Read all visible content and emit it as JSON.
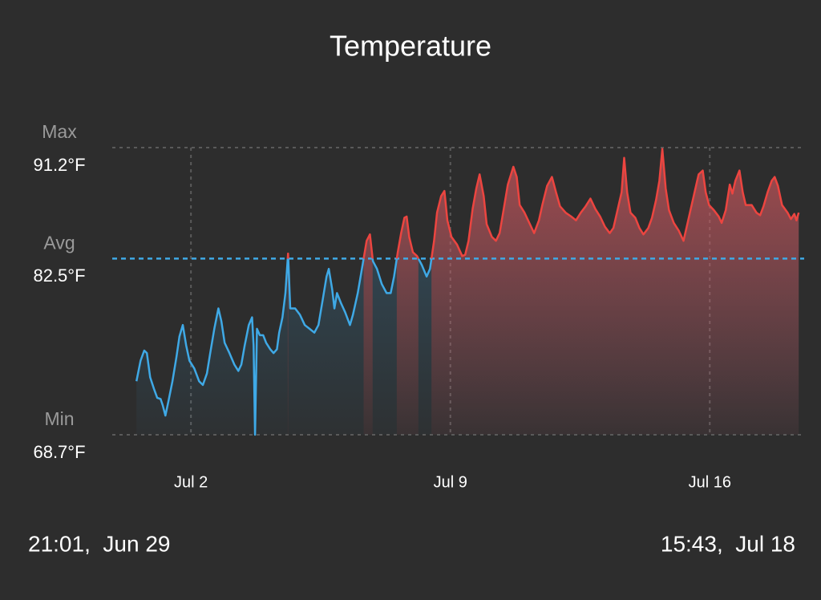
{
  "chart_data": {
    "type": "line",
    "title": "Temperature",
    "x": [
      0.53,
      0.64,
      0.74,
      0.81,
      0.9,
      1.0,
      1.09,
      1.18,
      1.24,
      1.31,
      1.39,
      1.5,
      1.61,
      1.69,
      1.78,
      1.87,
      1.96,
      2.09,
      2.22,
      2.32,
      2.43,
      2.52,
      2.63,
      2.74,
      2.82,
      2.91,
      3.04,
      3.17,
      3.28,
      3.36,
      3.45,
      3.56,
      3.65,
      3.69,
      3.73,
      3.78,
      3.86,
      3.95,
      4.03,
      4.14,
      4.23,
      4.32,
      4.38,
      4.47,
      4.55,
      4.62,
      4.68,
      4.81,
      4.94,
      5.07,
      5.2,
      5.33,
      5.44,
      5.55,
      5.66,
      5.72,
      5.81,
      5.87,
      5.94,
      6.05,
      6.16,
      6.29,
      6.37,
      6.5,
      6.63,
      6.74,
      6.83,
      6.91,
      7.02,
      7.15,
      7.28,
      7.39,
      7.48,
      7.58,
      7.67,
      7.76,
      7.82,
      7.89,
      7.99,
      8.1,
      8.23,
      8.36,
      8.45,
      8.56,
      8.64,
      8.75,
      8.84,
      8.92,
      9.03,
      9.18,
      9.32,
      9.4,
      9.49,
      9.6,
      9.7,
      9.79,
      9.9,
      9.98,
      10.12,
      10.23,
      10.33,
      10.44,
      10.55,
      10.7,
      10.79,
      10.87,
      11.0,
      11.13,
      11.26,
      11.39,
      11.48,
      11.61,
      11.74,
      11.85,
      11.96,
      12.11,
      12.26,
      12.39,
      12.52,
      12.65,
      12.78,
      12.91,
      13.04,
      13.17,
      13.3,
      13.4,
      13.51,
      13.62,
      13.69,
      13.77,
      13.86,
      13.99,
      14.1,
      14.21,
      14.34,
      14.44,
      14.55,
      14.64,
      14.72,
      14.81,
      14.9,
      15.03,
      15.16,
      15.29,
      15.37,
      15.48,
      15.59,
      15.7,
      15.81,
      15.89,
      15.98,
      16.11,
      16.24,
      16.32,
      16.43,
      16.54,
      16.61,
      16.69,
      16.8,
      16.89,
      16.97,
      17.13,
      17.26,
      17.36,
      17.45,
      17.56,
      17.67,
      17.75,
      17.84,
      17.95,
      18.1,
      18.19,
      18.28,
      18.34,
      18.4
    ],
    "values": [
      72.9,
      74.5,
      75.3,
      75.1,
      73.2,
      72.3,
      71.6,
      71.5,
      71.0,
      70.2,
      71.3,
      72.9,
      74.8,
      76.4,
      77.3,
      75.7,
      74.5,
      73.9,
      72.9,
      72.6,
      73.5,
      75.1,
      77.0,
      78.6,
      77.6,
      75.9,
      75.1,
      74.2,
      73.7,
      74.2,
      75.7,
      77.3,
      77.9,
      75.7,
      68.7,
      77.0,
      76.5,
      76.5,
      75.9,
      75.4,
      75.1,
      75.4,
      76.7,
      77.9,
      79.8,
      82.9,
      78.6,
      78.6,
      78.1,
      77.3,
      77.0,
      76.7,
      77.3,
      79.2,
      81.1,
      81.7,
      80.1,
      78.6,
      79.8,
      79.0,
      78.3,
      77.3,
      78.1,
      79.8,
      82.0,
      83.9,
      84.4,
      82.3,
      81.7,
      80.5,
      79.8,
      79.8,
      81.1,
      83.0,
      84.5,
      85.7,
      85.8,
      84.2,
      83.0,
      82.7,
      82.0,
      81.1,
      81.7,
      83.9,
      86.1,
      87.4,
      87.8,
      85.5,
      84.2,
      83.6,
      82.7,
      82.8,
      83.9,
      86.4,
      88.0,
      89.1,
      87.4,
      85.2,
      84.2,
      83.9,
      84.5,
      86.4,
      88.3,
      89.7,
      88.9,
      86.7,
      86.1,
      85.3,
      84.5,
      85.5,
      86.7,
      88.2,
      88.9,
      87.7,
      86.6,
      86.1,
      85.8,
      85.5,
      86.1,
      86.6,
      87.2,
      86.4,
      85.8,
      85.0,
      84.5,
      84.9,
      86.3,
      87.7,
      90.4,
      87.7,
      86.1,
      85.7,
      84.9,
      84.4,
      84.9,
      85.7,
      87.1,
      88.6,
      91.1,
      88.0,
      86.3,
      85.3,
      84.7,
      83.9,
      84.9,
      86.3,
      87.7,
      89.1,
      89.4,
      87.7,
      86.7,
      86.3,
      85.8,
      85.3,
      86.3,
      88.3,
      87.6,
      88.6,
      89.4,
      87.7,
      86.7,
      86.7,
      86.1,
      85.9,
      86.6,
      87.7,
      88.6,
      88.9,
      88.2,
      86.7,
      86.1,
      85.6,
      86.0,
      85.5,
      86.1
    ],
    "color_above": "#ec4540",
    "color_below": "#3fa9e6",
    "xlim": [
      -0.124,
      18.655
    ],
    "xlim_labels": [
      "21:01,  Jun 29",
      "15:43,  Jul 18"
    ],
    "xticks": [
      {
        "value": 2,
        "label": "Jul 2"
      },
      {
        "value": 9,
        "label": "Jul 9"
      },
      {
        "value": 16,
        "label": "Jul 16"
      }
    ],
    "ylim": [
      68.7,
      91.2
    ],
    "yticks": [
      {
        "value": 68.7,
        "label": "68.7°F"
      },
      {
        "value": 82.5,
        "label": "82.5°F"
      },
      {
        "value": 91.2,
        "label": "91.2°F"
      }
    ],
    "ytick_captions": [
      "Min",
      "Avg",
      "Max"
    ],
    "ytick_line_colors": [
      "#5a5a5a",
      "#3fa9e6",
      "#5a5a5a"
    ]
  }
}
